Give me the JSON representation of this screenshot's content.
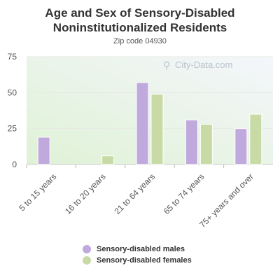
{
  "title": "Age and Sex of Sensory-Disabled Noninstitutionalized Residents",
  "subtitle": "Zip code 04930",
  "watermark": "City-Data.com",
  "colors": {
    "males": "#c0a9dc",
    "females": "#c8dba7",
    "axis_text": "#555555",
    "bg_top": "#f4f6fb",
    "bg_bottom": "#dff2d6"
  },
  "chart_data": {
    "type": "bar",
    "title": "Age and Sex of Sensory-Disabled Noninstitutionalized Residents",
    "subtitle": "Zip code 04930",
    "categories": [
      "5 to 15 years",
      "16 to 20 years",
      "21 to 64 years",
      "65 to 74 years",
      "75+ years and over"
    ],
    "series": [
      {
        "name": "Sensory-disabled males",
        "values": [
          19,
          0,
          57,
          31,
          25
        ]
      },
      {
        "name": "Sensory-disabled females",
        "values": [
          0,
          6,
          49,
          28,
          35
        ]
      }
    ],
    "ylim": [
      0,
      75
    ],
    "yticks": [
      0,
      25,
      50,
      75
    ],
    "grid": true,
    "legend_position": "bottom"
  }
}
